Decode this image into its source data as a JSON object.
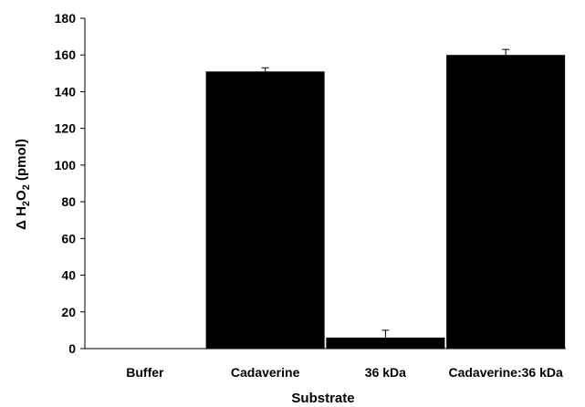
{
  "chart_data": {
    "type": "bar",
    "categories": [
      "Buffer",
      "Cadaverine",
      "36 kDa",
      "Cadaverine:36 kDa"
    ],
    "values": [
      0,
      151,
      6,
      160
    ],
    "errors": [
      0,
      2,
      4,
      3
    ],
    "xlabel": "Substrate",
    "ylabel": "Δ H2O2 (pmol)",
    "ylabel_parts": {
      "pre": "Δ H",
      "sub1": "2",
      "mid": "O",
      "sub2": "2",
      "post": " (pmol)"
    },
    "ylim": [
      0,
      180
    ],
    "yticks": [
      "0",
      "20",
      "40",
      "60",
      "80",
      "100",
      "120",
      "140",
      "160",
      "180"
    ],
    "grid": false,
    "legend": "none",
    "bar_color": "#000000"
  }
}
